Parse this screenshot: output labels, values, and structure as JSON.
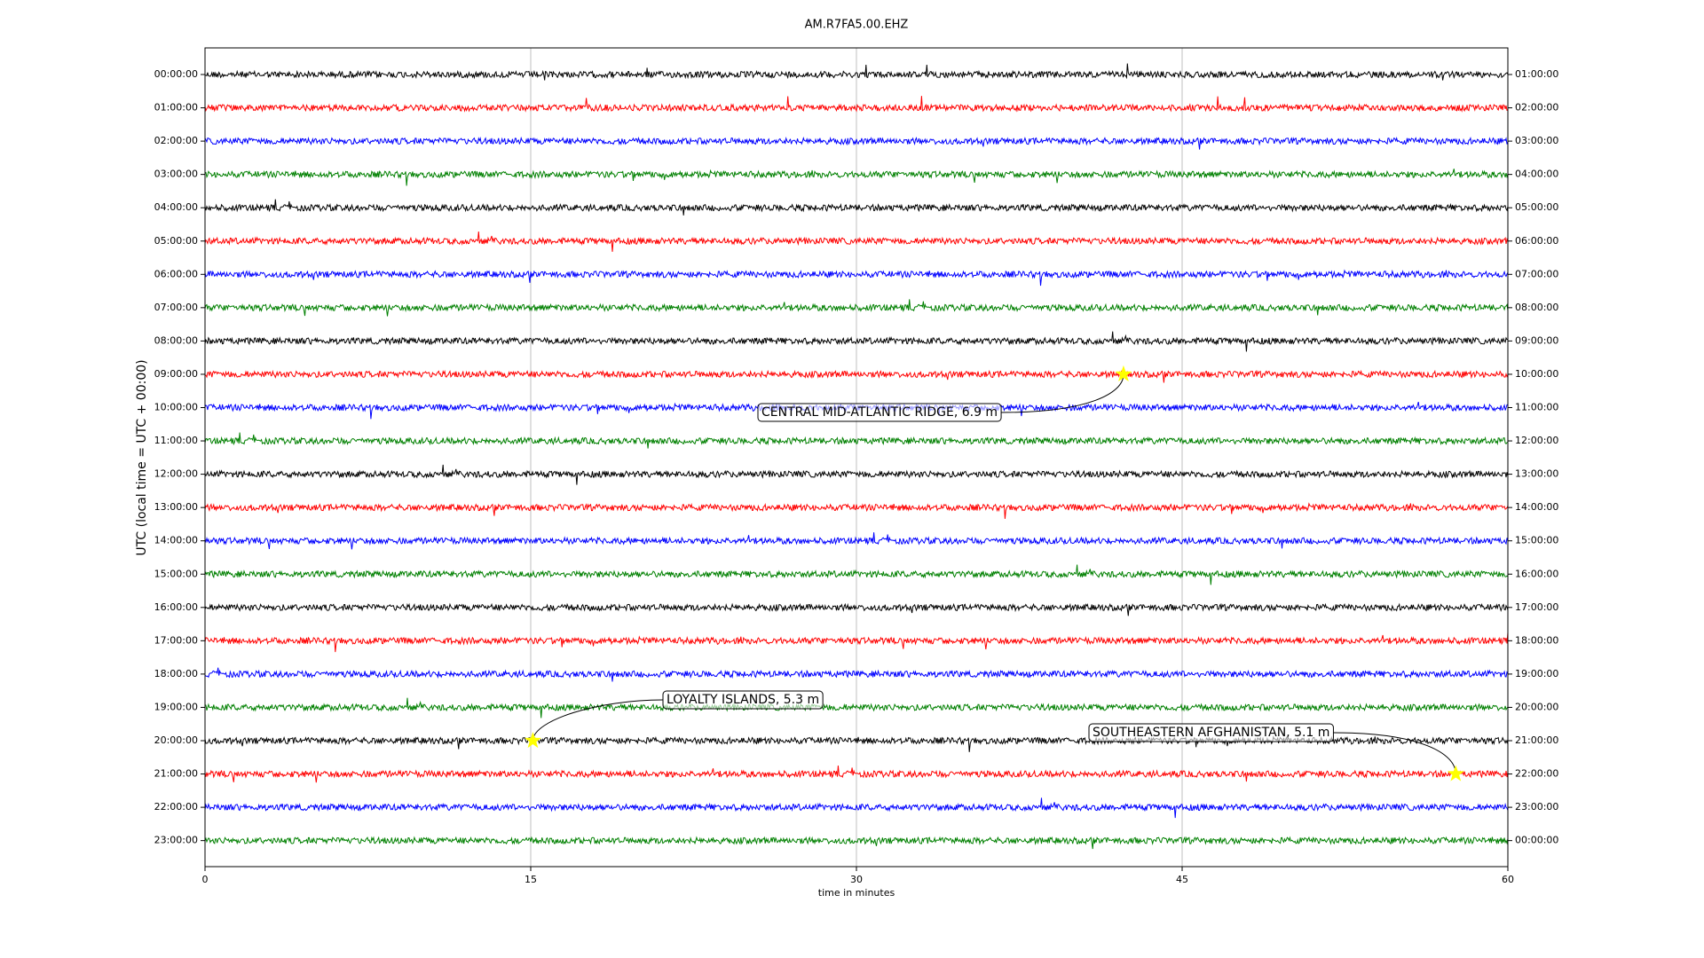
{
  "chart_data": {
    "type": "helicorder",
    "title": "AM.R7FA5.00.EHZ",
    "ylabel": "UTC (local time = UTC + 00:00)",
    "xlabel": "time in minutes",
    "xlim": [
      0,
      60
    ],
    "xticks": [
      0,
      15,
      30,
      45,
      60
    ],
    "grid": true,
    "row_labels": [
      "00:00:00",
      "01:00:00",
      "02:00:00",
      "03:00:00",
      "04:00:00",
      "05:00:00",
      "06:00:00",
      "07:00:00",
      "08:00:00",
      "09:00:00",
      "10:00:00",
      "11:00:00",
      "12:00:00",
      "13:00:00",
      "14:00:00",
      "15:00:00",
      "16:00:00",
      "17:00:00",
      "18:00:00",
      "19:00:00",
      "20:00:00",
      "21:00:00",
      "22:00:00",
      "23:00:00"
    ],
    "right_row_labels": [
      "01:00:00",
      "02:00:00",
      "03:00:00",
      "04:00:00",
      "05:00:00",
      "06:00:00",
      "07:00:00",
      "08:00:00",
      "09:00:00",
      "10:00:00",
      "11:00:00",
      "12:00:00",
      "13:00:00",
      "14:00:00",
      "15:00:00",
      "16:00:00",
      "17:00:00",
      "18:00:00",
      "19:00:00",
      "20:00:00",
      "21:00:00",
      "22:00:00",
      "23:00:00",
      "00:00:00"
    ],
    "colors": [
      "#000000",
      "#ff0000",
      "#0000ff",
      "#008000"
    ],
    "events": [
      {
        "label": "CENTRAL MID-ATLANTIC RIDGE, 6.9 m",
        "x": 42.3,
        "row": 9
      },
      {
        "label": "LOYALTY ISLANDS, 5.3 m",
        "x": 15.1,
        "row": 20
      },
      {
        "label": "SOUTHEASTERN AFGHANISTAN, 5.1 m",
        "x": 57.6,
        "row": 21
      }
    ]
  }
}
